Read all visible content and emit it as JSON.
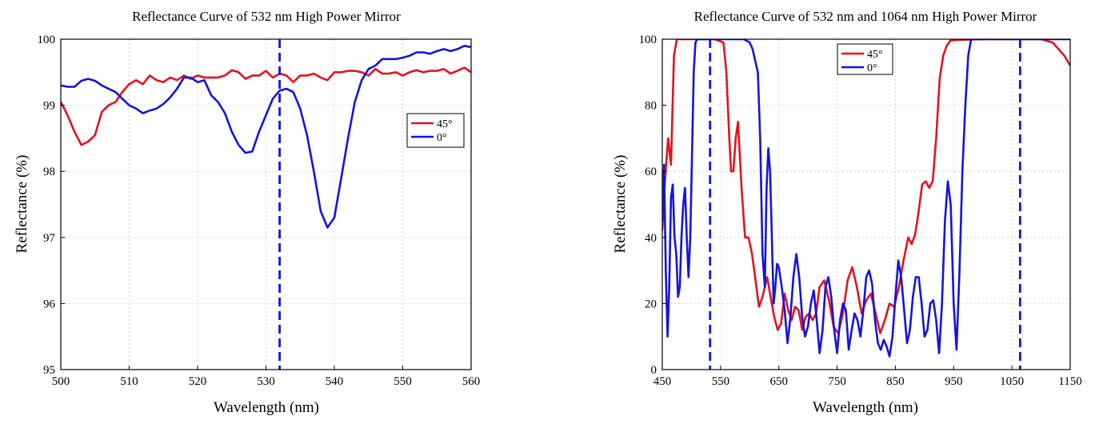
{
  "chart_data": [
    {
      "type": "line",
      "title": "Reflectance Curve of 532 nm High Power Mirror",
      "xlabel": "Wavelength (nm)",
      "ylabel": "Reflectance (%)",
      "xlim": [
        500,
        560
      ],
      "ylim": [
        95,
        100
      ],
      "xticks": [
        500,
        510,
        520,
        530,
        540,
        550,
        560
      ],
      "yticks": [
        95,
        96,
        97,
        98,
        99,
        100
      ],
      "xtick_labels": [
        "500",
        "510",
        "520",
        "530",
        "540",
        "550",
        "560"
      ],
      "ytick_labels": [
        "95",
        "96",
        "97",
        "98",
        "99",
        "100"
      ],
      "grid": true,
      "legend_position": "right",
      "marker_line": {
        "x": 532,
        "color": "#1414dc",
        "style": "dashed"
      },
      "series": [
        {
          "name": "45°",
          "color": "#e0141e",
          "x": [
            500,
            501,
            502,
            503,
            504,
            505,
            506,
            507,
            508,
            509,
            510,
            511,
            512,
            513,
            514,
            515,
            516,
            517,
            518,
            519,
            520,
            521,
            522,
            523,
            524,
            525,
            526,
            527,
            528,
            529,
            530,
            531,
            532,
            533,
            534,
            535,
            536,
            537,
            538,
            539,
            540,
            541,
            542,
            543,
            544,
            545,
            546,
            547,
            548,
            549,
            550,
            551,
            552,
            553,
            554,
            555,
            556,
            557,
            558,
            559,
            560
          ],
          "y": [
            99.05,
            98.85,
            98.6,
            98.4,
            98.45,
            98.55,
            98.9,
            99.0,
            99.05,
            99.2,
            99.32,
            99.38,
            99.32,
            99.45,
            99.38,
            99.35,
            99.42,
            99.38,
            99.45,
            99.4,
            99.45,
            99.42,
            99.42,
            99.42,
            99.45,
            99.53,
            99.5,
            99.4,
            99.45,
            99.45,
            99.52,
            99.42,
            99.48,
            99.45,
            99.35,
            99.45,
            99.45,
            99.48,
            99.42,
            99.38,
            99.5,
            99.5,
            99.52,
            99.52,
            99.5,
            99.45,
            99.55,
            99.48,
            99.48,
            99.5,
            99.45,
            99.5,
            99.53,
            99.5,
            99.52,
            99.52,
            99.55,
            99.48,
            99.52,
            99.57,
            99.5
          ]
        },
        {
          "name": "0°",
          "color": "#1414dc",
          "x": [
            500,
            501,
            502,
            503,
            504,
            505,
            506,
            507,
            508,
            509,
            510,
            511,
            512,
            513,
            514,
            515,
            516,
            517,
            518,
            519,
            520,
            521,
            522,
            523,
            524,
            525,
            526,
            527,
            528,
            529,
            530,
            531,
            532,
            533,
            534,
            535,
            536,
            537,
            538,
            539,
            540,
            541,
            542,
            543,
            544,
            545,
            546,
            547,
            548,
            549,
            550,
            551,
            552,
            553,
            554,
            555,
            556,
            557,
            558,
            559,
            560
          ],
          "y": [
            99.3,
            99.28,
            99.28,
            99.37,
            99.4,
            99.37,
            99.3,
            99.25,
            99.2,
            99.1,
            99.0,
            98.95,
            98.88,
            98.92,
            98.95,
            99.02,
            99.12,
            99.25,
            99.42,
            99.42,
            99.35,
            99.38,
            99.15,
            99.05,
            98.88,
            98.6,
            98.4,
            98.28,
            98.3,
            98.6,
            98.85,
            99.1,
            99.22,
            99.25,
            99.2,
            98.95,
            98.55,
            98.0,
            97.4,
            97.15,
            97.3,
            97.9,
            98.5,
            99.05,
            99.38,
            99.55,
            99.6,
            99.7,
            99.7,
            99.7,
            99.72,
            99.75,
            99.8,
            99.8,
            99.78,
            99.82,
            99.85,
            99.82,
            99.85,
            99.9,
            99.88
          ]
        }
      ]
    },
    {
      "type": "line",
      "title": "Reflectance Curve of 532 nm and 1064 nm High Power Mirror",
      "xlabel": "Wavelength (nm)",
      "ylabel": "Reflectance (%)",
      "xlim": [
        450,
        1150
      ],
      "ylim": [
        0,
        100
      ],
      "xticks": [
        450,
        550,
        650,
        750,
        850,
        950,
        1050,
        1150
      ],
      "yticks": [
        0,
        20,
        40,
        60,
        80,
        100
      ],
      "xtick_labels": [
        "450",
        "550",
        "650",
        "750",
        "850",
        "950",
        "1050",
        "1150"
      ],
      "ytick_labels": [
        "0",
        "20",
        "40",
        "60",
        "80",
        "100"
      ],
      "grid": true,
      "legend_position": "top-left",
      "marker_lines": [
        {
          "x": 532,
          "color": "#1414dc",
          "style": "dashed"
        },
        {
          "x": 1064,
          "color": "#1414dc",
          "style": "dashed"
        }
      ],
      "series": [
        {
          "name": "45°",
          "color": "#e0141e",
          "x": [
            450,
            455,
            460,
            465,
            470,
            475,
            480,
            490,
            500,
            520,
            540,
            555,
            560,
            565,
            568,
            572,
            576,
            580,
            586,
            592,
            598,
            604,
            610,
            616,
            622,
            630,
            636,
            642,
            648,
            654,
            660,
            666,
            672,
            678,
            684,
            690,
            696,
            702,
            708,
            714,
            720,
            728,
            736,
            744,
            752,
            760,
            768,
            776,
            784,
            792,
            800,
            808,
            816,
            824,
            832,
            840,
            848,
            856,
            864,
            872,
            878,
            884,
            890,
            896,
            902,
            908,
            914,
            920,
            926,
            932,
            938,
            944,
            950,
            960,
            980,
            1000,
            1050,
            1100,
            1120,
            1130,
            1140,
            1150
          ],
          "y": [
            42,
            58,
            70,
            62,
            95,
            100,
            100,
            100,
            100,
            100,
            100,
            99,
            90,
            70,
            60,
            60,
            70,
            75,
            55,
            40,
            40,
            35,
            27,
            19,
            22,
            28,
            22,
            16,
            12,
            14,
            23,
            18,
            15,
            19,
            18,
            12,
            16,
            17,
            15,
            17,
            25,
            27,
            21,
            13,
            11,
            17,
            27,
            31,
            25,
            17,
            21,
            23,
            17,
            11,
            15,
            20,
            19,
            25,
            33,
            40,
            38,
            41,
            48,
            56,
            57,
            55,
            57,
            70,
            88,
            95,
            98,
            99.5,
            99.7,
            99.8,
            99.9,
            100,
            100,
            100,
            99,
            97,
            95,
            92
          ]
        },
        {
          "name": "0°",
          "color": "#1414dc",
          "x": [
            450,
            453,
            456,
            459,
            462,
            465,
            468,
            471,
            474,
            477,
            480,
            483,
            486,
            489,
            492,
            495,
            498,
            501,
            504,
            507,
            510,
            515,
            520,
            530,
            540,
            560,
            590,
            600,
            605,
            610,
            614,
            618,
            622,
            626,
            629,
            632,
            635,
            638,
            641,
            644,
            647,
            650,
            655,
            660,
            665,
            670,
            675,
            680,
            685,
            690,
            695,
            700,
            705,
            710,
            715,
            720,
            725,
            730,
            735,
            740,
            745,
            750,
            755,
            760,
            765,
            770,
            775,
            780,
            785,
            790,
            795,
            800,
            805,
            810,
            815,
            820,
            825,
            830,
            835,
            840,
            845,
            850,
            855,
            860,
            865,
            870,
            875,
            880,
            885,
            890,
            895,
            900,
            905,
            910,
            915,
            920,
            925,
            930,
            935,
            940,
            945,
            950,
            955,
            960,
            965,
            970,
            975,
            980,
            985,
            990,
            1000,
            1010,
            1020,
            1030,
            1040,
            1050,
            1060,
            1080,
            1150
          ],
          "y": [
            45,
            62,
            30,
            10,
            25,
            52,
            56,
            40,
            35,
            22,
            25,
            40,
            50,
            55,
            40,
            28,
            40,
            65,
            90,
            99,
            100,
            100,
            100,
            100,
            100,
            100,
            100,
            99,
            97,
            93,
            90,
            70,
            35,
            25,
            55,
            67,
            60,
            40,
            20,
            25,
            32,
            31,
            25,
            18,
            8,
            16,
            28,
            35,
            28,
            16,
            10,
            13,
            20,
            24,
            15,
            5,
            12,
            25,
            28,
            22,
            12,
            5,
            15,
            20,
            18,
            6,
            12,
            17,
            15,
            10,
            18,
            28,
            30,
            26,
            15,
            8,
            6,
            9,
            7,
            4,
            10,
            22,
            33,
            28,
            18,
            8,
            12,
            22,
            28,
            28,
            20,
            10,
            12,
            20,
            21,
            15,
            5,
            20,
            45,
            57,
            50,
            20,
            6,
            30,
            60,
            80,
            95,
            100,
            100,
            100,
            100,
            100,
            100,
            100,
            100,
            100,
            100,
            100,
            100
          ]
        }
      ]
    }
  ]
}
